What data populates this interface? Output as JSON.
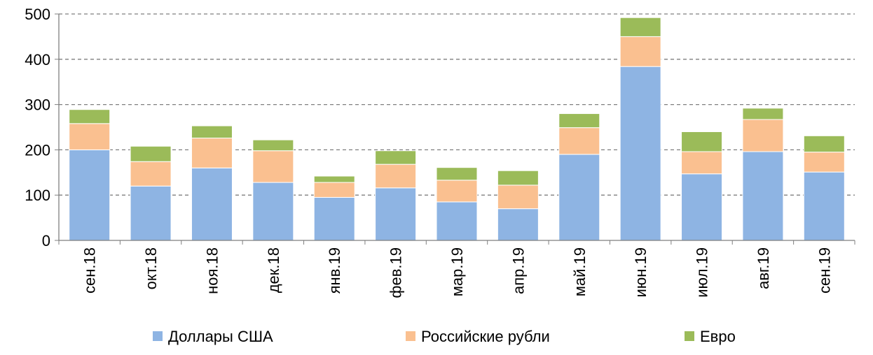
{
  "chart_data": {
    "type": "bar",
    "stacked": true,
    "categories": [
      "сен.18",
      "окт.18",
      "ноя.18",
      "дек.18",
      "янв.19",
      "фев.19",
      "мар.19",
      "апр.19",
      "май.19",
      "июн.19",
      "июл.19",
      "авг.19",
      "сен.19"
    ],
    "series": [
      {
        "name": "Доллары США",
        "color": "#8EB4E3",
        "values": [
          200,
          120,
          160,
          128,
          95,
          116,
          85,
          70,
          190,
          384,
          147,
          196,
          151
        ]
      },
      {
        "name": "Российские рубли",
        "color": "#FAC090",
        "values": [
          58,
          54,
          66,
          70,
          33,
          52,
          48,
          52,
          59,
          66,
          49,
          71,
          44
        ]
      },
      {
        "name": "Евро",
        "color": "#9BBB59",
        "values": [
          31,
          34,
          27,
          24,
          14,
          30,
          28,
          32,
          31,
          42,
          44,
          25,
          36
        ]
      }
    ],
    "y_ticks": [
      "0",
      "100",
      "200",
      "300",
      "400",
      "500"
    ],
    "ylim": [
      0,
      500
    ],
    "grid": "horizontal-dashed",
    "legend_position": "bottom",
    "x_tick_rotation": "vertical"
  }
}
